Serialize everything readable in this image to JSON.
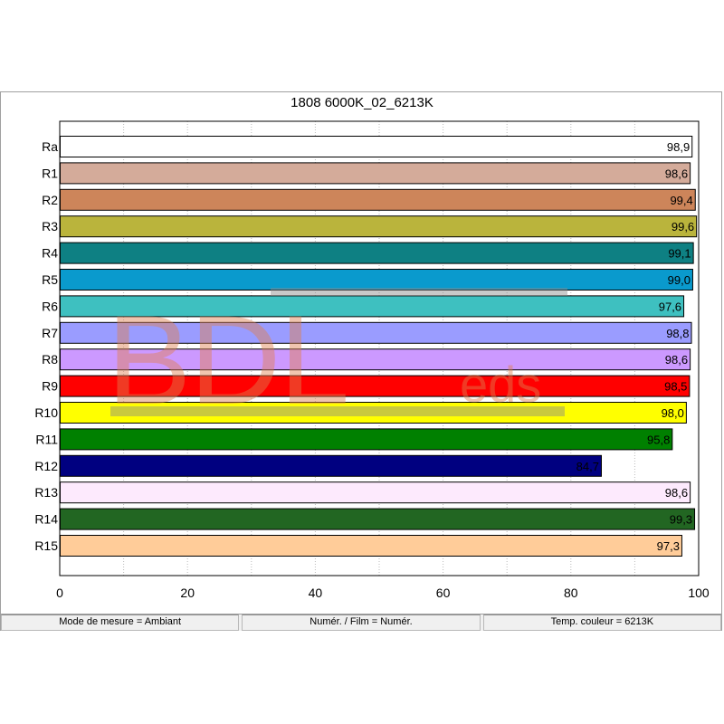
{
  "window": {
    "title": "1808 6000K_02_6213K"
  },
  "chart_data": {
    "type": "bar",
    "orientation": "horizontal",
    "title": "1808 6000K_02_6213K",
    "categories": [
      "Ra",
      "R1",
      "R2",
      "R3",
      "R4",
      "R5",
      "R6",
      "R7",
      "R8",
      "R9",
      "R10",
      "R11",
      "R12",
      "R13",
      "R14",
      "R15"
    ],
    "values": [
      98.9,
      98.6,
      99.4,
      99.6,
      99.1,
      99.0,
      97.6,
      98.8,
      98.6,
      98.5,
      98.0,
      95.8,
      84.7,
      98.6,
      99.3,
      97.3
    ],
    "value_labels": [
      "98,9",
      "98,6",
      "99,4",
      "99,6",
      "99,1",
      "99,0",
      "97,6",
      "98,8",
      "98,6",
      "98,5",
      "98,0",
      "95,8",
      "84,7",
      "98,6",
      "99,3",
      "97,3"
    ],
    "colors": [
      "#ffffff",
      "#d4ab9a",
      "#cd855a",
      "#bab43c",
      "#0e8083",
      "#0a9acd",
      "#3ec0c0",
      "#9a9cff",
      "#cc99ff",
      "#ff0000",
      "#ffff00",
      "#008000",
      "#000080",
      "#fdeafd",
      "#226622",
      "#ffcc99"
    ],
    "xlim": [
      0,
      100
    ],
    "x_ticks": [
      0,
      20,
      40,
      60,
      80,
      100
    ],
    "grid": true,
    "xlabel": "",
    "ylabel": ""
  },
  "watermark": {
    "text_main": "BDL",
    "text_sub": "eds"
  },
  "status_bar": {
    "mode": "Mode de mesure = Ambiant",
    "film": "Numér. / Film = Numér.",
    "temp": "Temp. couleur = 6213K"
  }
}
